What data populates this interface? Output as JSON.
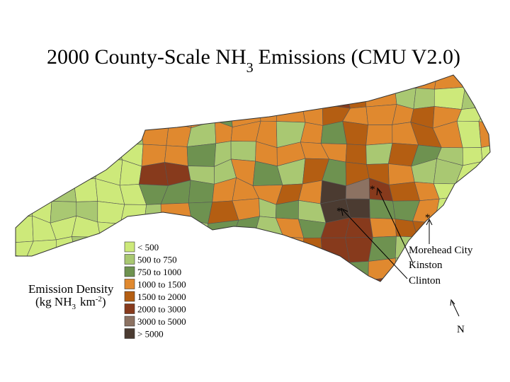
{
  "title": {
    "main": "2000 County-Scale NH",
    "sub": "3",
    "rest": "Emissions (CMU V2.0)"
  },
  "legend": {
    "title": "Emission Density",
    "unit": {
      "open": "(kg NH",
      "sub": "3",
      "mid": "km",
      "sup": "-2",
      "close": ")"
    },
    "classes": [
      {
        "label": "< 500",
        "color": "#cde97a"
      },
      {
        "label": "500 to 750",
        "color": "#a9c872"
      },
      {
        "label": "750 to 1000",
        "color": "#6e9250"
      },
      {
        "label": "1000 to 1500",
        "color": "#e0892f"
      },
      {
        "label": "1500 to 2000",
        "color": "#b45e12"
      },
      {
        "label": "2000 to 3000",
        "color": "#873a1c"
      },
      {
        "label": "3000 to 5000",
        "color": "#8c7262"
      },
      {
        "label": "> 5000",
        "color": "#4b3b31"
      }
    ]
  },
  "annotations": {
    "marker": "*",
    "places": [
      "Morehead City",
      "Kinston",
      "Clinton"
    ],
    "north": "N"
  }
}
